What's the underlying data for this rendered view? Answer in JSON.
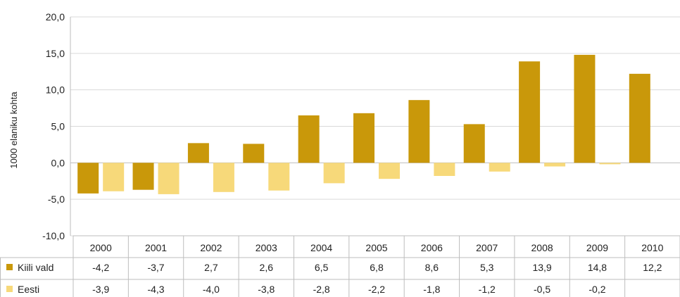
{
  "chart_data": {
    "type": "bar",
    "ylabel": "1000 elaniku kohta",
    "ylim": [
      -10,
      20
    ],
    "yticks": [
      "-10,0",
      "-5,0",
      "0,0",
      "5,0",
      "10,0",
      "15,0",
      "20,0"
    ],
    "grid": true,
    "categories": [
      "2000",
      "2001",
      "2002",
      "2003",
      "2004",
      "2005",
      "2006",
      "2007",
      "2008",
      "2009",
      "2010"
    ],
    "series": [
      {
        "name": "Kiili vald",
        "color": "#C9980A",
        "values": [
          -4.2,
          -3.7,
          2.7,
          2.6,
          6.5,
          6.8,
          8.6,
          5.3,
          13.9,
          14.8,
          12.2
        ],
        "labels": [
          "-4,2",
          "-3,7",
          "2,7",
          "2,6",
          "6,5",
          "6,8",
          "8,6",
          "5,3",
          "13,9",
          "14,8",
          "12,2"
        ]
      },
      {
        "name": "Eesti",
        "color": "#F7D97A",
        "values": [
          -3.9,
          -4.3,
          -4.0,
          -3.8,
          -2.8,
          -2.2,
          -1.8,
          -1.2,
          -0.5,
          -0.2,
          null
        ],
        "labels": [
          "-3,9",
          "-4,3",
          "-4,0",
          "-3,8",
          "-2,8",
          "-2,2",
          "-1,8",
          "-1,2",
          "-0,5",
          "-0,2",
          ""
        ]
      }
    ],
    "legend": "data-table"
  }
}
